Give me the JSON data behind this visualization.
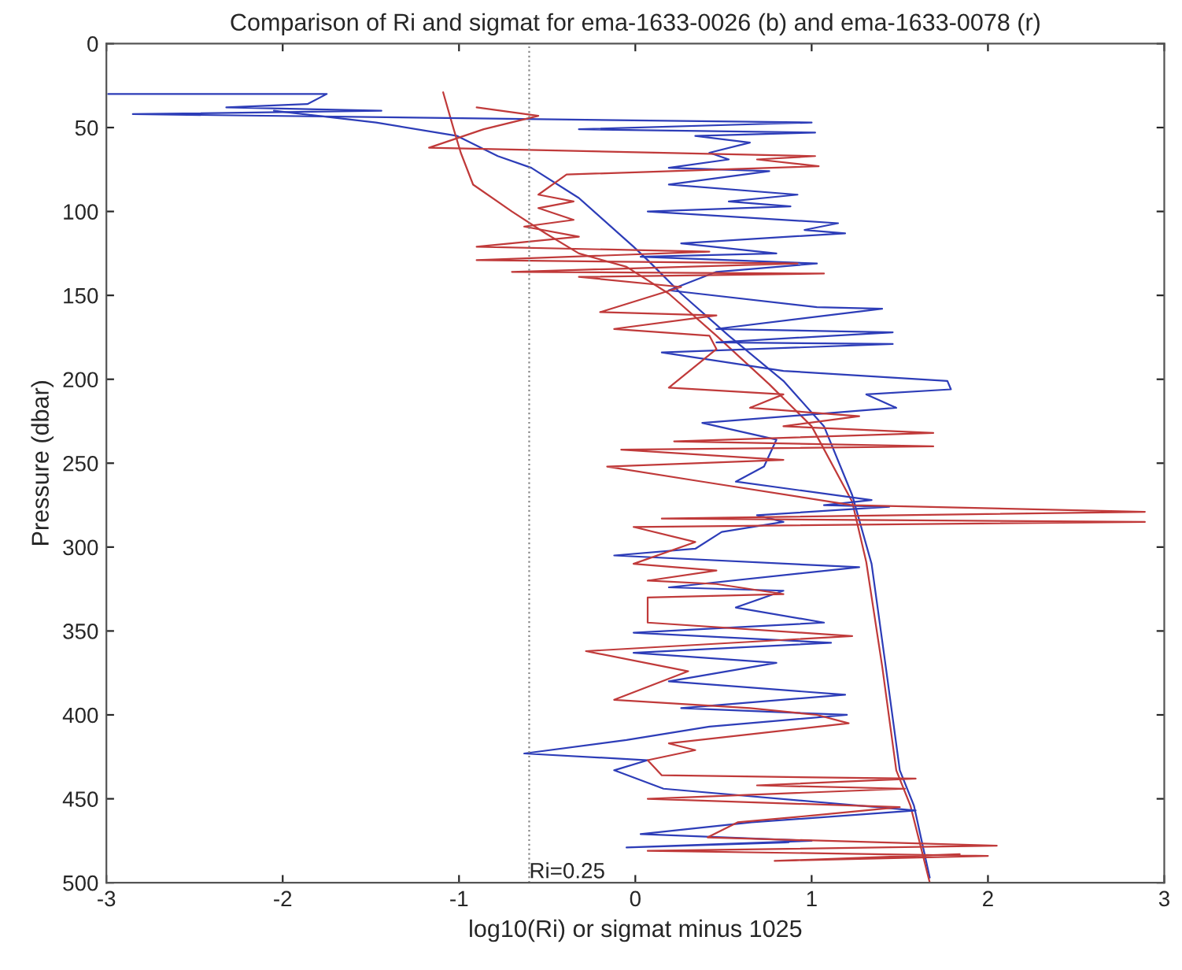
{
  "chart_data": {
    "type": "line",
    "title": "Comparison of Ri and sigmat for ema-1633-0026 (b) and ema-1633-0078 (r)",
    "xlabel": "log10(Ri) or sigmat minus 1025",
    "ylabel": "Pressure (dbar)",
    "xlim": [
      -3,
      3
    ],
    "xticks": [
      -3,
      -2,
      -1,
      0,
      1,
      2,
      3
    ],
    "ylim": [
      500,
      0
    ],
    "yticks": [
      0,
      50,
      100,
      150,
      200,
      250,
      300,
      350,
      400,
      450,
      500
    ],
    "grid": false,
    "legend": false,
    "line_style": "solid",
    "marker": "none",
    "ref_lines": [
      {
        "axis": "x",
        "value": -0.602,
        "color": "#888888",
        "line_style": "dotted"
      }
    ],
    "annotations": [
      {
        "text": "Ri=0.25",
        "x": -0.602,
        "y": 500
      }
    ],
    "series": [
      {
        "color": "#2d3db8",
        "x": [
          -2.05,
          -1.47,
          -1.01,
          -0.78,
          -0.59,
          -0.32,
          -0.01,
          0.07,
          0.26,
          0.53,
          0.84,
          1.07,
          1.23,
          1.34,
          1.42,
          1.5,
          1.58,
          1.67
        ],
        "values": [
          40,
          47,
          55,
          67,
          74,
          92,
          121,
          129,
          149,
          174,
          201,
          228,
          269,
          310,
          371,
          433,
          454,
          497
        ]
      },
      {
        "color": "#c03a3a",
        "x": [
          -1.09,
          -1.03,
          -0.99,
          -0.92,
          -0.7,
          -0.51,
          -0.32,
          -0.05,
          0.19,
          0.46,
          0.76,
          1.0,
          1.23,
          1.31,
          1.4,
          1.48,
          1.56,
          1.67
        ],
        "values": [
          29,
          51,
          65,
          84,
          100,
          113,
          125,
          133,
          149,
          174,
          203,
          228,
          273,
          309,
          371,
          433,
          454,
          500
        ]
      },
      {
        "color": "#2d3db8",
        "x": [
          -2.99,
          -1.75,
          -1.86,
          -2.32,
          -1.44,
          -2.85,
          1.0,
          -0.32,
          1.02,
          0.34,
          0.65,
          0.42,
          0.53,
          0.19,
          0.76,
          0.19,
          0.92,
          0.53,
          0.88,
          0.07,
          1.15,
          0.96,
          1.19,
          0.26,
          0.8,
          0.03,
          1.03,
          0.46,
          0.19,
          1.03,
          1.4,
          0.46,
          1.46,
          0.46,
          1.46,
          0.15,
          0.84,
          1.77,
          1.79,
          1.31,
          1.48,
          0.38,
          0.8,
          0.73,
          0.57,
          1.34,
          1.07,
          1.44,
          0.69,
          0.84,
          0.49,
          0.34,
          -0.12,
          1.27,
          0.19,
          0.84,
          0.57,
          1.07,
          -0.01,
          1.11,
          -0.01,
          0.8,
          0.19,
          1.19,
          0.26,
          1.2,
          0.42,
          -0.05,
          -0.63,
          0.07,
          -0.12,
          0.16,
          1.59,
          0.66,
          0.03,
          1.0,
          -0.05,
          0.87
        ],
        "values": [
          30,
          30,
          36,
          38,
          40,
          42,
          47,
          51,
          53,
          55,
          59,
          65,
          69,
          74,
          76,
          84,
          90,
          94,
          97,
          100,
          107,
          111,
          113,
          119,
          125,
          127,
          131,
          136,
          147,
          157,
          158,
          170,
          172,
          178,
          179,
          184,
          195,
          201,
          206,
          209,
          217,
          226,
          236,
          252,
          261,
          272,
          275,
          276,
          281,
          285,
          291,
          301,
          305,
          312,
          324,
          326,
          336,
          345,
          351,
          357,
          363,
          369,
          380,
          388,
          396,
          400,
          407,
          415,
          423,
          427,
          433,
          444,
          457,
          464,
          471,
          475,
          479,
          476
        ]
      },
      {
        "color": "#c03a3a",
        "x": [
          -0.9,
          -0.55,
          -0.86,
          -1.17,
          1.02,
          0.69,
          1.04,
          -0.39,
          -0.55,
          -0.35,
          -0.55,
          -0.35,
          -0.63,
          -0.32,
          -0.9,
          0.42,
          -0.9,
          0.92,
          -0.7,
          1.07,
          -0.32,
          0.26,
          -0.2,
          0.46,
          -0.12,
          0.42,
          0.46,
          0.19,
          0.84,
          0.65,
          1.27,
          0.84,
          1.69,
          0.22,
          1.69,
          -0.08,
          0.84,
          -0.16,
          0.38,
          1.23,
          2.89,
          0.15,
          2.89,
          -0.01,
          0.34,
          -0.01,
          0.46,
          0.07,
          0.46,
          0.84,
          0.07,
          0.07,
          1.23,
          -0.28,
          0.3,
          -0.12,
          0.65,
          1.03,
          1.21,
          0.19,
          0.34,
          0.07,
          0.15,
          1.59,
          0.69,
          1.53,
          0.07,
          1.5,
          1.0,
          0.58,
          0.41,
          2.05,
          0.07,
          2.0,
          0.79,
          1.84
        ],
        "values": [
          38,
          43,
          51,
          62,
          67,
          69,
          73,
          78,
          90,
          94,
          98,
          105,
          109,
          115,
          121,
          124,
          129,
          131,
          136,
          137,
          139,
          145,
          160,
          162,
          170,
          174,
          182,
          205,
          209,
          217,
          222,
          228,
          232,
          237,
          240,
          242,
          248,
          252,
          261,
          275,
          279,
          283,
          285,
          288,
          297,
          310,
          314,
          320,
          322,
          328,
          330,
          345,
          353,
          362,
          374,
          391,
          396,
          400,
          405,
          417,
          421,
          427,
          436,
          438,
          442,
          444,
          450,
          455,
          460,
          464,
          473,
          478,
          481,
          484,
          487,
          483
        ]
      }
    ]
  }
}
